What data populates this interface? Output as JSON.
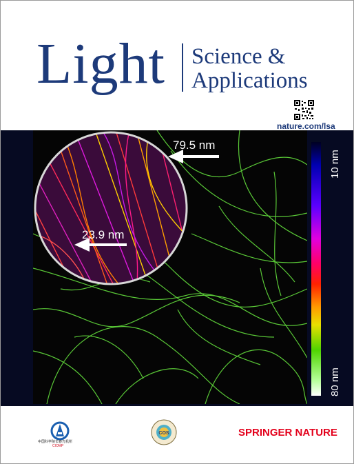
{
  "masthead": {
    "title_main": "Light",
    "title_sub_line1": "Science &",
    "title_sub_line2": "Applications",
    "url": "nature.com/lsa"
  },
  "image": {
    "callout_top": "79.5 nm",
    "callout_bottom": "23.9 nm",
    "colorbar_top_label": "10 nm",
    "colorbar_bottom_label": "80 nm"
  },
  "footer": {
    "left_logo_text_cn": "中国科学院长春光机所",
    "left_logo_text_en": "CIOMP",
    "center_logo_text": "COS",
    "publisher": "SPRINGER NATURE"
  },
  "colors": {
    "title_blue": "#1d3a7a",
    "band_background": "#060a22",
    "filament_green": "#5fd43a",
    "publisher_red": "#e3001b"
  }
}
